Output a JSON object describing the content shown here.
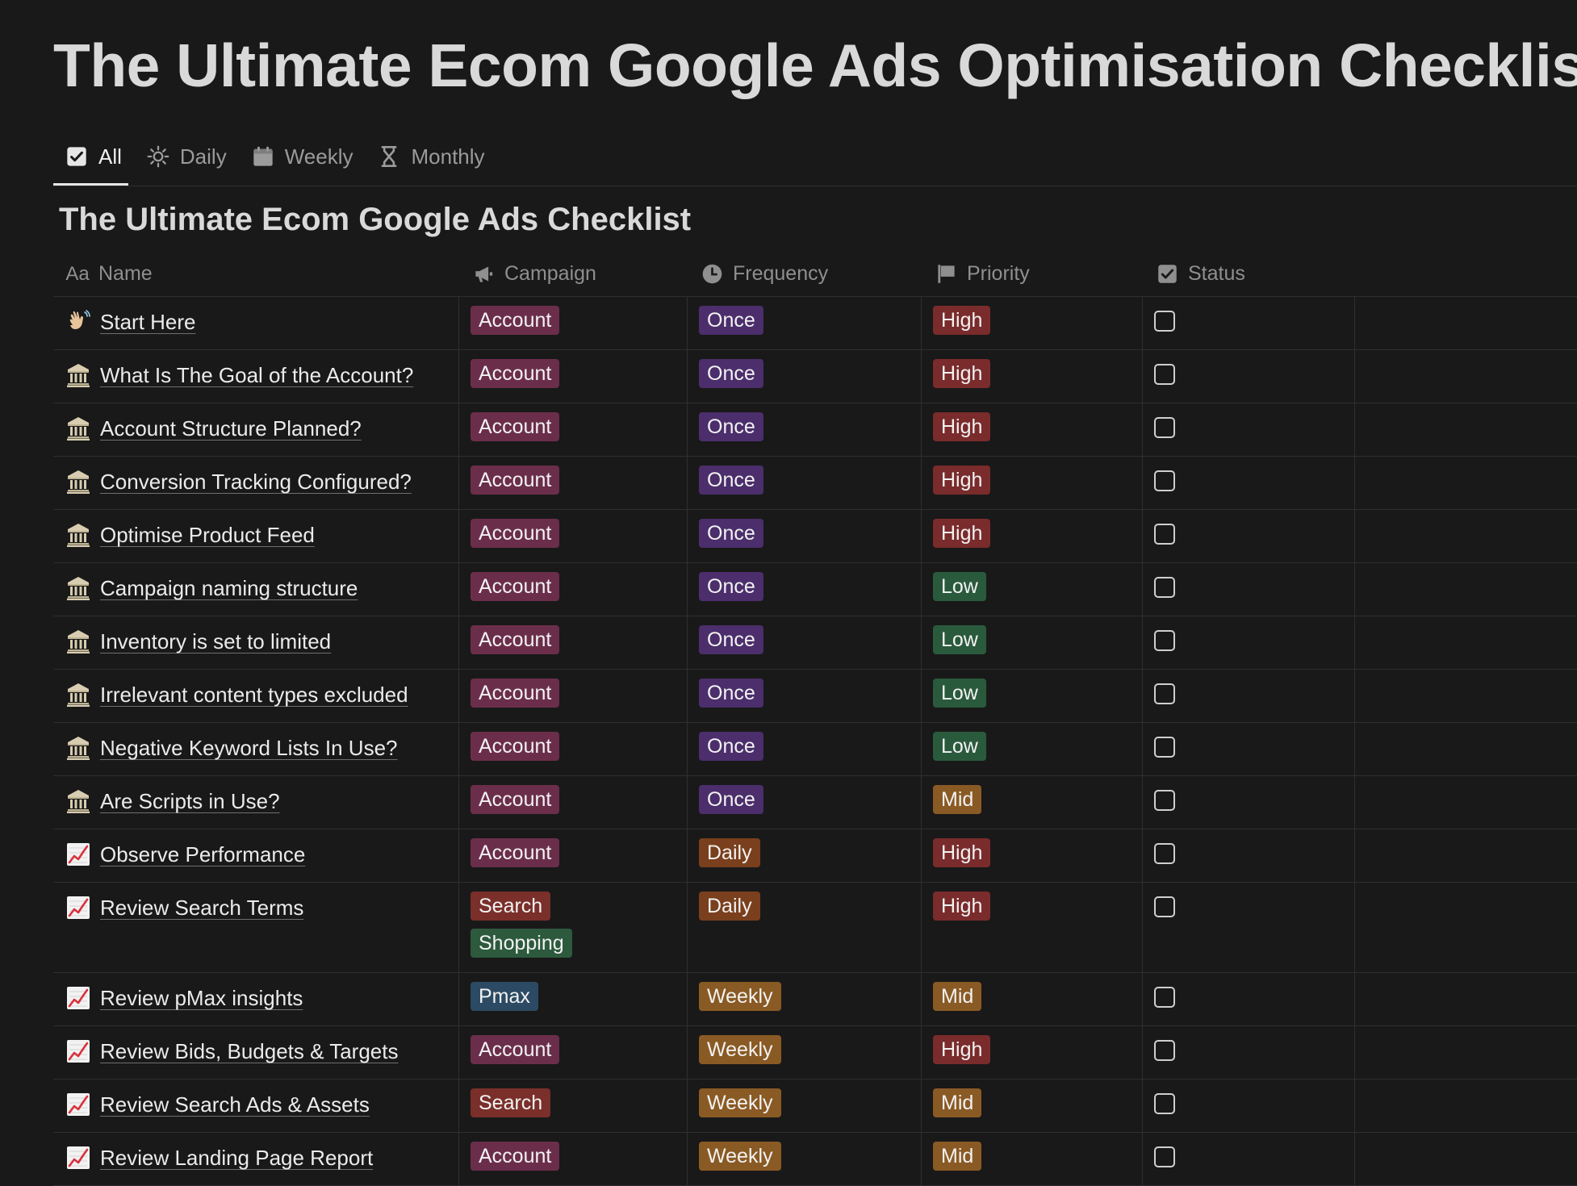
{
  "page": {
    "title": "The Ultimate Ecom Google Ads Optimisation Checklist"
  },
  "tabs": [
    {
      "label": "All",
      "icon": "checkbox-icon",
      "active": true
    },
    {
      "label": "Daily",
      "icon": "sun-icon",
      "active": false
    },
    {
      "label": "Weekly",
      "icon": "calendar-icon",
      "active": false
    },
    {
      "label": "Monthly",
      "icon": "hourglass-icon",
      "active": false
    }
  ],
  "database": {
    "title": "The Ultimate Ecom Google Ads Checklist"
  },
  "columns": {
    "name": {
      "label": "Name",
      "icon_text": "Aa"
    },
    "campaign": {
      "label": "Campaign",
      "icon": "megaphone-icon"
    },
    "frequency": {
      "label": "Frequency",
      "icon": "clock-icon"
    },
    "priority": {
      "label": "Priority",
      "icon": "flag-icon"
    },
    "status": {
      "label": "Status",
      "icon": "checkbox-icon"
    }
  },
  "tag_colors": {
    "Account": "#6b2e4a",
    "Search": "#7a2f2a",
    "Shopping": "#2d5a3d",
    "Pmax": "#2c4a63",
    "Once": "#4b2e6b",
    "Daily": "#7a3f1d",
    "Weekly": "#8a5a24",
    "High": "#7a2b2b",
    "Low": "#2a5a3c",
    "Mid": "#8a5a24"
  },
  "rows": [
    {
      "icon": "waving-hand-icon",
      "name": "Start Here",
      "campaign": [
        "Account"
      ],
      "frequency": "Once",
      "priority": "High",
      "status": false
    },
    {
      "icon": "classical-building-icon",
      "name": "What Is The Goal of the Account?",
      "campaign": [
        "Account"
      ],
      "frequency": "Once",
      "priority": "High",
      "status": false
    },
    {
      "icon": "classical-building-icon",
      "name": "Account Structure Planned?",
      "campaign": [
        "Account"
      ],
      "frequency": "Once",
      "priority": "High",
      "status": false
    },
    {
      "icon": "classical-building-icon",
      "name": "Conversion Tracking Configured?",
      "campaign": [
        "Account"
      ],
      "frequency": "Once",
      "priority": "High",
      "status": false
    },
    {
      "icon": "classical-building-icon",
      "name": "Optimise Product Feed",
      "campaign": [
        "Account"
      ],
      "frequency": "Once",
      "priority": "High",
      "status": false
    },
    {
      "icon": "classical-building-icon",
      "name": "Campaign naming structure",
      "campaign": [
        "Account"
      ],
      "frequency": "Once",
      "priority": "Low",
      "status": false
    },
    {
      "icon": "classical-building-icon",
      "name": "Inventory is set to limited",
      "campaign": [
        "Account"
      ],
      "frequency": "Once",
      "priority": "Low",
      "status": false
    },
    {
      "icon": "classical-building-icon",
      "name": "Irrelevant content types excluded",
      "campaign": [
        "Account"
      ],
      "frequency": "Once",
      "priority": "Low",
      "status": false
    },
    {
      "icon": "classical-building-icon",
      "name": "Negative Keyword Lists In Use?",
      "campaign": [
        "Account"
      ],
      "frequency": "Once",
      "priority": "Low",
      "status": false
    },
    {
      "icon": "classical-building-icon",
      "name": "Are Scripts in Use?",
      "campaign": [
        "Account"
      ],
      "frequency": "Once",
      "priority": "Mid",
      "status": false
    },
    {
      "icon": "chart-increasing-icon",
      "name": "Observe Performance",
      "campaign": [
        "Account"
      ],
      "frequency": "Daily",
      "priority": "High",
      "status": false
    },
    {
      "icon": "chart-increasing-icon",
      "name": "Review Search Terms",
      "campaign": [
        "Search",
        "Shopping"
      ],
      "frequency": "Daily",
      "priority": "High",
      "status": false
    },
    {
      "icon": "chart-increasing-icon",
      "name": "Review pMax insights",
      "campaign": [
        "Pmax"
      ],
      "frequency": "Weekly",
      "priority": "Mid",
      "status": false
    },
    {
      "icon": "chart-increasing-icon",
      "name": "Review Bids, Budgets & Targets",
      "campaign": [
        "Account"
      ],
      "frequency": "Weekly",
      "priority": "High",
      "status": false
    },
    {
      "icon": "chart-increasing-icon",
      "name": "Review Search Ads & Assets",
      "campaign": [
        "Search"
      ],
      "frequency": "Weekly",
      "priority": "Mid",
      "status": false
    },
    {
      "icon": "chart-increasing-icon",
      "name": "Review Landing Page Report",
      "campaign": [
        "Account"
      ],
      "frequency": "Weekly",
      "priority": "Mid",
      "status": false
    }
  ]
}
